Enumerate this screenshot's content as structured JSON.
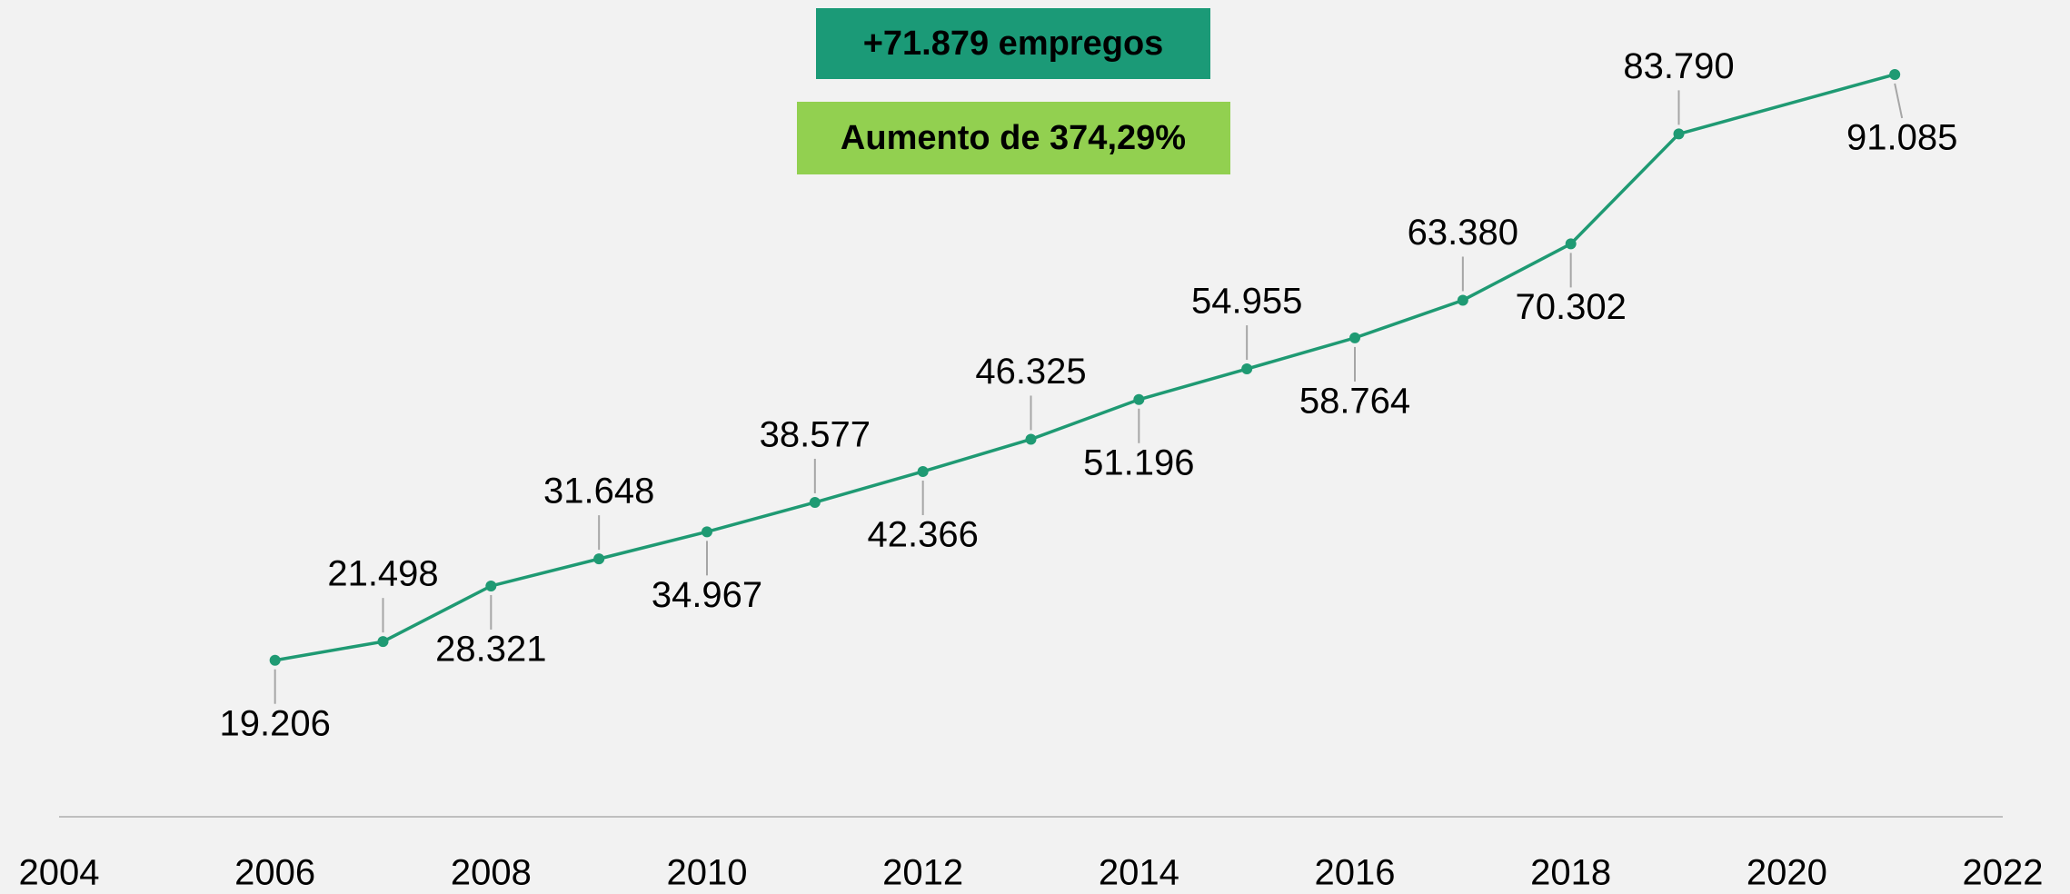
{
  "chart_data": {
    "type": "line",
    "annotations": [
      "+71.879 empregos",
      "Aumento de 374,29%"
    ],
    "x": [
      2006,
      2007,
      2008,
      2009,
      2010,
      2011,
      2012,
      2013,
      2014,
      2015,
      2016,
      2017,
      2018,
      2019,
      2021
    ],
    "series": [
      {
        "color": "#1f9a73",
        "values": [
          19206,
          21498,
          28321,
          31648,
          34967,
          38577,
          42366,
          46325,
          51196,
          54955,
          58764,
          63380,
          70302,
          83790,
          91085
        ],
        "value_labels": [
          "19.206",
          "21.498",
          "28.321",
          "31.648",
          "34.967",
          "38.577",
          "42.366",
          "46.325",
          "51.196",
          "54.955",
          "58.764",
          "63.380",
          "70.302",
          "83.790",
          "91.085"
        ]
      }
    ],
    "xlim": [
      2004,
      2022
    ],
    "xticks": [
      2004,
      2006,
      2008,
      2010,
      2012,
      2014,
      2016,
      2018,
      2020,
      2022
    ],
    "ylim": [
      0,
      100000
    ]
  }
}
